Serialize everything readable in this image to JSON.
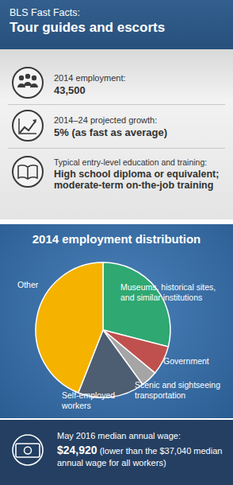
{
  "header": {
    "kicker": "BLS Fast Facts:",
    "title": "Tour guides and escorts"
  },
  "facts": [
    {
      "label": "2014 employment:",
      "value": "43,500"
    },
    {
      "label": "2014–24 projected growth:",
      "value": "5% (as fast as average)"
    },
    {
      "label": "Typical entry-level education and training:",
      "value": "High school diploma or equivalent; moderate-term on-the-job training"
    }
  ],
  "chart_data": {
    "type": "pie",
    "title": "2014 employment distribution",
    "categories": [
      "Museums, historical sites, and similar institutions",
      "Government",
      "Scenic and sightseeing transportation",
      "Self-employed workers",
      "Other"
    ],
    "values": [
      29,
      7,
      4,
      16,
      44
    ],
    "colors": [
      "#2fa872",
      "#c0504d",
      "#a5a5a5",
      "#4d5d72",
      "#f5b300"
    ]
  },
  "footer": {
    "label": "May 2016 median annual wage:",
    "value": "$24,920",
    "note": "(lower than the $37,040 median annual wage for all workers)"
  }
}
